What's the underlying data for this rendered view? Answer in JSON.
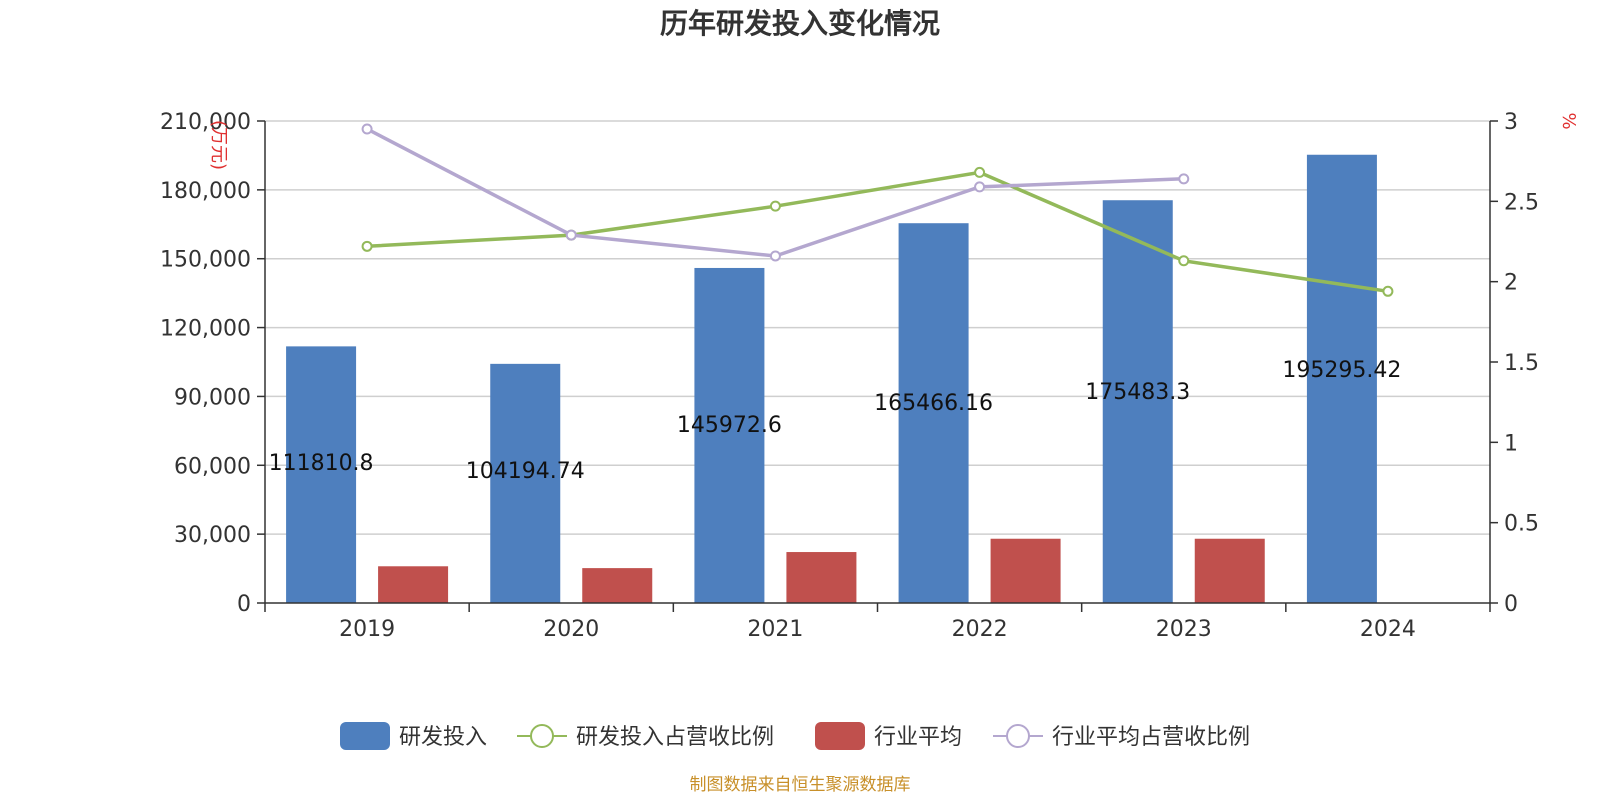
{
  "chart_data": {
    "type": "bar",
    "title": "历年研发投入变化情况",
    "categories": [
      "2019",
      "2020",
      "2021",
      "2022",
      "2023",
      "2024"
    ],
    "y_left": {
      "unit": "(万元)",
      "min": 0,
      "max": 210000,
      "ticks": [
        0,
        30000,
        60000,
        90000,
        120000,
        150000,
        180000,
        210000
      ],
      "tick_labels": [
        "0",
        "30,000",
        "60,000",
        "90,000",
        "120,000",
        "150,000",
        "180,000",
        "210,000"
      ]
    },
    "y_right": {
      "unit": "%",
      "min": 0,
      "max": 3,
      "ticks": [
        0,
        0.5,
        1,
        1.5,
        2,
        2.5,
        3
      ],
      "tick_labels": [
        "0",
        "0.5",
        "1",
        "1.5",
        "2",
        "2.5",
        "3"
      ]
    },
    "series": [
      {
        "name": "研发投入",
        "kind": "bar",
        "axis": "left",
        "color": "#4e7fbe",
        "values": [
          111810.8,
          104194.74,
          145972.6,
          165466.16,
          175483.3,
          195295.42
        ],
        "labels": [
          "111810.8",
          "104194.74",
          "145972.6",
          "165466.16",
          "175483.3",
          "195295.42"
        ]
      },
      {
        "name": "研发投入占营收比例",
        "kind": "line",
        "axis": "right",
        "color": "#93b95a",
        "values": [
          2.22,
          2.29,
          2.47,
          2.68,
          2.13,
          1.94
        ]
      },
      {
        "name": "行业平均",
        "kind": "bar",
        "axis": "left",
        "color": "#c0504d",
        "values": [
          16000,
          15200,
          22200,
          28000,
          28000,
          null
        ]
      },
      {
        "name": "行业平均占营收比例",
        "kind": "line",
        "axis": "right",
        "color": "#b4a7cf",
        "values": [
          2.95,
          2.29,
          2.16,
          2.59,
          2.64,
          null
        ]
      }
    ],
    "grid": true,
    "legend_position": "bottom"
  },
  "source": "制图数据来自恒生聚源数据库"
}
